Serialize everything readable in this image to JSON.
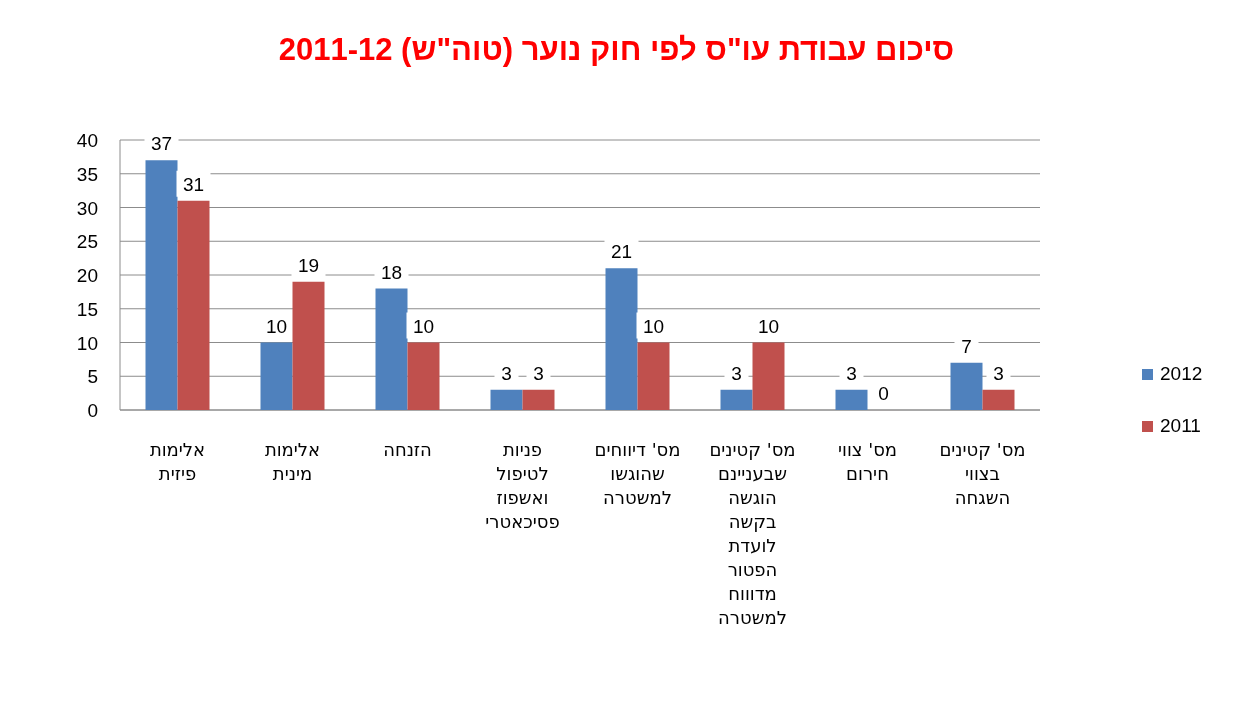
{
  "chart_data": {
    "type": "bar",
    "title": "סיכום עבודת עו\"ס לפי  חוק נוער (טוה\"ש) 2011-12",
    "categories": [
      "אלימות פיזית",
      "אלימות מינית",
      "הזנחה",
      "פניות לטיפול ואשפוז פסיכאטרי",
      "מס' דיווחים שהוגשו למשטרה",
      "מס' קטינים שבעניינם הוגשה בקשה לועדת הפטור מדוווח למשטרה",
      "מס' צווי חירום",
      "מס' קטינים בצווי השגחה"
    ],
    "series": [
      {
        "name": "2012",
        "color": "#4f81bd",
        "values": [
          37,
          10,
          18,
          3,
          21,
          3,
          3,
          7
        ]
      },
      {
        "name": "2011",
        "color": "#c0504d",
        "values": [
          31,
          19,
          10,
          3,
          10,
          10,
          0,
          3
        ]
      }
    ],
    "ylim": [
      0,
      40
    ],
    "yticks": [
      0,
      5,
      10,
      15,
      20,
      25,
      30,
      35,
      40
    ],
    "grid": "y",
    "legend": "right",
    "data_labels": true
  }
}
